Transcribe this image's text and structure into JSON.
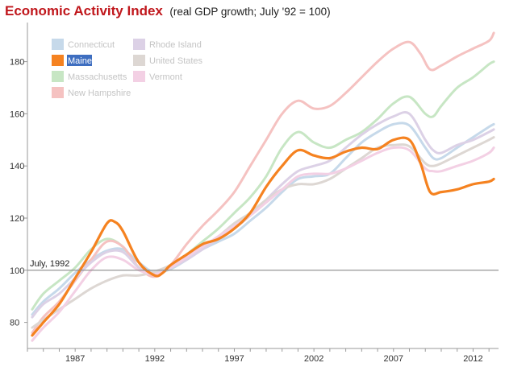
{
  "header": {
    "title": "Economic Activity Index",
    "subtitle": "(real GDP growth; July '92 = 100)"
  },
  "chart_data": {
    "type": "line",
    "title": "Economic Activity Index",
    "subtitle": "(real GDP growth; July '92 = 100)",
    "xlabel": "",
    "ylabel": "",
    "xlim": [
      1984,
      2013.6
    ],
    "ylim": [
      70,
      195
    ],
    "x_ticks": [
      "1987",
      "1992",
      "1997",
      "2002",
      "2007",
      "2012"
    ],
    "y_ticks": [
      "80",
      "100",
      "120",
      "140",
      "160",
      "180"
    ],
    "grid": false,
    "legend_position": "top-left",
    "highlighted_series": "Maine",
    "reference_line": {
      "y": 100,
      "label": "July, 1992"
    },
    "series": [
      {
        "name": "Connecticut",
        "color": "#c6d9ea",
        "points": [
          [
            1984.3,
            83
          ],
          [
            1985,
            88
          ],
          [
            1986,
            93
          ],
          [
            1987,
            99
          ],
          [
            1988,
            104
          ],
          [
            1989,
            107.5
          ],
          [
            1990,
            108
          ],
          [
            1991,
            103
          ],
          [
            1992,
            99
          ],
          [
            1993,
            100.5
          ],
          [
            1994,
            104
          ],
          [
            1995,
            108
          ],
          [
            1996,
            111
          ],
          [
            1997,
            114
          ],
          [
            1998,
            119
          ],
          [
            1999,
            124
          ],
          [
            2000,
            130
          ],
          [
            2001,
            135
          ],
          [
            2002,
            136
          ],
          [
            2003,
            137
          ],
          [
            2004,
            143
          ],
          [
            2005,
            149
          ],
          [
            2006,
            153
          ],
          [
            2007,
            156
          ],
          [
            2008,
            155.5
          ],
          [
            2009,
            147
          ],
          [
            2009.5,
            143
          ],
          [
            2010,
            143
          ],
          [
            2011,
            147
          ],
          [
            2012,
            151
          ],
          [
            2013,
            155
          ],
          [
            2013.3,
            156
          ]
        ]
      },
      {
        "name": "Maine",
        "color": "#f58220",
        "points": [
          [
            1984.3,
            75
          ],
          [
            1985,
            80
          ],
          [
            1986,
            87
          ],
          [
            1987,
            97
          ],
          [
            1988,
            107
          ],
          [
            1989,
            118
          ],
          [
            1989.5,
            118.5
          ],
          [
            1990,
            115
          ],
          [
            1991,
            103
          ],
          [
            1992,
            98
          ],
          [
            1992.5,
            99
          ],
          [
            1993,
            102
          ],
          [
            1994,
            106
          ],
          [
            1995,
            110
          ],
          [
            1996,
            112
          ],
          [
            1997,
            116
          ],
          [
            1998,
            122
          ],
          [
            1999,
            132
          ],
          [
            2000,
            140
          ],
          [
            2001,
            146
          ],
          [
            2002,
            144
          ],
          [
            2003,
            143
          ],
          [
            2004,
            145.5
          ],
          [
            2005,
            147
          ],
          [
            2006,
            146.5
          ],
          [
            2007,
            150
          ],
          [
            2008,
            150
          ],
          [
            2008.7,
            141
          ],
          [
            2009.3,
            130
          ],
          [
            2010,
            130
          ],
          [
            2011,
            131
          ],
          [
            2012,
            133
          ],
          [
            2013,
            134
          ],
          [
            2013.3,
            135
          ]
        ]
      },
      {
        "name": "Massachusetts",
        "color": "#c7e6c4",
        "points": [
          [
            1984.3,
            85
          ],
          [
            1985,
            91
          ],
          [
            1986,
            96
          ],
          [
            1987,
            101
          ],
          [
            1988,
            108
          ],
          [
            1989,
            112
          ],
          [
            1990,
            109
          ],
          [
            1991,
            101
          ],
          [
            1992,
            98.5
          ],
          [
            1993,
            101
          ],
          [
            1994,
            106
          ],
          [
            1995,
            111
          ],
          [
            1996,
            116
          ],
          [
            1997,
            122
          ],
          [
            1998,
            128
          ],
          [
            1999,
            136
          ],
          [
            2000,
            147
          ],
          [
            2001,
            153
          ],
          [
            2002,
            149
          ],
          [
            2003,
            147
          ],
          [
            2004,
            150
          ],
          [
            2005,
            153
          ],
          [
            2006,
            158
          ],
          [
            2007,
            164
          ],
          [
            2008,
            166.5
          ],
          [
            2009,
            160
          ],
          [
            2009.5,
            159
          ],
          [
            2010,
            163
          ],
          [
            2011,
            170
          ],
          [
            2012,
            174
          ],
          [
            2013,
            179
          ],
          [
            2013.3,
            180
          ]
        ]
      },
      {
        "name": "New Hampshire",
        "color": "#f5c2c1",
        "points": [
          [
            1984.3,
            76
          ],
          [
            1985,
            82
          ],
          [
            1986,
            88
          ],
          [
            1987,
            96
          ],
          [
            1988,
            104
          ],
          [
            1989,
            111
          ],
          [
            1990,
            109
          ],
          [
            1991,
            101
          ],
          [
            1992,
            97.5
          ],
          [
            1993,
            102
          ],
          [
            1994,
            110
          ],
          [
            1995,
            117
          ],
          [
            1996,
            123
          ],
          [
            1997,
            130
          ],
          [
            1998,
            140
          ],
          [
            1999,
            150
          ],
          [
            2000,
            160
          ],
          [
            2001,
            165
          ],
          [
            2002,
            162
          ],
          [
            2003,
            163
          ],
          [
            2004,
            168
          ],
          [
            2005,
            174
          ],
          [
            2006,
            180
          ],
          [
            2007,
            185
          ],
          [
            2008,
            187.5
          ],
          [
            2008.7,
            183
          ],
          [
            2009.3,
            177
          ],
          [
            2010,
            178.5
          ],
          [
            2011,
            182
          ],
          [
            2012,
            185
          ],
          [
            2013,
            188
          ],
          [
            2013.3,
            191
          ]
        ]
      },
      {
        "name": "Rhode Island",
        "color": "#dcd1e6",
        "points": [
          [
            1984.3,
            82
          ],
          [
            1985,
            87
          ],
          [
            1986,
            91
          ],
          [
            1987,
            97
          ],
          [
            1988,
            103
          ],
          [
            1989,
            107
          ],
          [
            1990,
            107
          ],
          [
            1991,
            101
          ],
          [
            1992,
            99
          ],
          [
            1993,
            101
          ],
          [
            1994,
            104
          ],
          [
            1995,
            108
          ],
          [
            1996,
            112
          ],
          [
            1997,
            116
          ],
          [
            1998,
            121
          ],
          [
            1999,
            127
          ],
          [
            2000,
            133
          ],
          [
            2001,
            138
          ],
          [
            2002,
            140
          ],
          [
            2003,
            142
          ],
          [
            2004,
            147
          ],
          [
            2005,
            152
          ],
          [
            2006,
            156
          ],
          [
            2007,
            159
          ],
          [
            2008,
            160
          ],
          [
            2009,
            150
          ],
          [
            2009.5,
            146
          ],
          [
            2010,
            145
          ],
          [
            2011,
            148
          ],
          [
            2012,
            150
          ],
          [
            2013,
            153
          ],
          [
            2013.3,
            154
          ]
        ]
      },
      {
        "name": "United States",
        "color": "#ddd7d3",
        "points": [
          [
            1984.3,
            78
          ],
          [
            1985,
            81
          ],
          [
            1986,
            85
          ],
          [
            1987,
            89
          ],
          [
            1988,
            93
          ],
          [
            1989,
            96
          ],
          [
            1990,
            98
          ],
          [
            1991,
            98
          ],
          [
            1992,
            99.5
          ],
          [
            1993,
            102
          ],
          [
            1994,
            106
          ],
          [
            1995,
            109
          ],
          [
            1996,
            113
          ],
          [
            1997,
            118
          ],
          [
            1998,
            122
          ],
          [
            1999,
            127
          ],
          [
            2000,
            131
          ],
          [
            2001,
            133
          ],
          [
            2002,
            133
          ],
          [
            2003,
            135
          ],
          [
            2004,
            139
          ],
          [
            2005,
            143
          ],
          [
            2006,
            147
          ],
          [
            2007,
            148
          ],
          [
            2008,
            147.5
          ],
          [
            2009,
            141
          ],
          [
            2009.5,
            140
          ],
          [
            2010,
            141
          ],
          [
            2011,
            144
          ],
          [
            2012,
            147
          ],
          [
            2013,
            150
          ],
          [
            2013.3,
            151
          ]
        ]
      },
      {
        "name": "Vermont",
        "color": "#f3d0e4",
        "points": [
          [
            1984.3,
            73
          ],
          [
            1985,
            78
          ],
          [
            1986,
            84
          ],
          [
            1987,
            92
          ],
          [
            1988,
            100
          ],
          [
            1989,
            105
          ],
          [
            1990,
            104
          ],
          [
            1991,
            100
          ],
          [
            1992,
            98.5
          ],
          [
            1993,
            101
          ],
          [
            1994,
            105
          ],
          [
            1995,
            109
          ],
          [
            1996,
            113
          ],
          [
            1997,
            117
          ],
          [
            1998,
            121
          ],
          [
            1999,
            126
          ],
          [
            2000,
            131
          ],
          [
            2001,
            136
          ],
          [
            2002,
            137
          ],
          [
            2003,
            137
          ],
          [
            2004,
            139
          ],
          [
            2005,
            142
          ],
          [
            2006,
            145
          ],
          [
            2007,
            147
          ],
          [
            2008,
            146
          ],
          [
            2009,
            139
          ],
          [
            2009.5,
            138
          ],
          [
            2010,
            138
          ],
          [
            2011,
            140
          ],
          [
            2012,
            142
          ],
          [
            2013,
            145
          ],
          [
            2013.3,
            147
          ]
        ]
      }
    ]
  }
}
